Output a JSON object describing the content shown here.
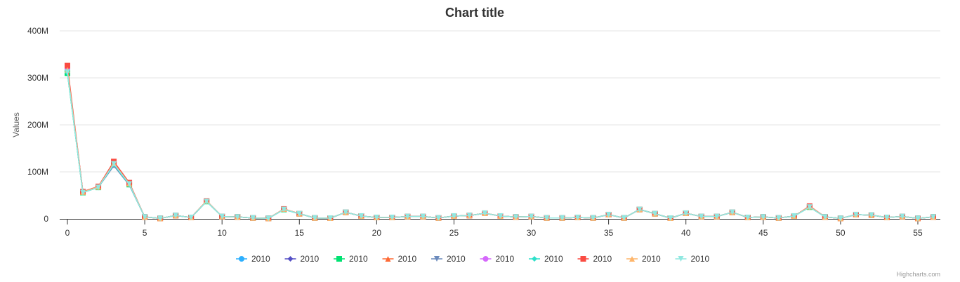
{
  "credits": "Highcharts.com",
  "chart_data": {
    "type": "line",
    "title": "Chart title",
    "ylabel": "Values",
    "xlabel": "",
    "xlim": [
      0,
      56
    ],
    "ylim": [
      0,
      400000000
    ],
    "x_ticks": [
      0,
      5,
      10,
      15,
      20,
      25,
      30,
      35,
      40,
      45,
      50,
      55
    ],
    "y_ticks": [
      0,
      100000000,
      200000000,
      300000000,
      400000000
    ],
    "y_tick_labels": [
      "0",
      "100M",
      "200M",
      "300M",
      "400M"
    ],
    "grid": "horizontal",
    "legend_position": "bottom-center",
    "series": [
      {
        "name": "2010",
        "color": "#2caffe",
        "marker": "circle",
        "values": [
          318000000,
          57000000,
          68000000,
          118000000,
          75000000,
          4000000,
          1000000,
          7000000,
          3000000,
          38000000,
          5000000,
          4000000,
          2000000,
          1000000,
          21000000,
          11000000,
          2000000,
          1500000,
          14000000,
          6000000,
          3000000,
          3000000,
          5000000,
          5000000,
          2000000,
          6000000,
          7000000,
          12000000,
          6000000,
          4000000,
          5000000,
          2000000,
          2000000,
          3000000,
          2000000,
          9000000,
          2000000,
          20000000,
          11000000,
          1500000,
          12000000,
          5000000,
          5000000,
          14000000,
          3000000,
          4000000,
          2000000,
          6000000,
          26000000,
          4000000,
          1000000,
          9000000,
          8000000,
          3000000,
          5000000,
          1000000,
          4000000
        ]
      },
      {
        "name": "2010",
        "color": "#544fc5",
        "marker": "diamond",
        "values": [
          315000000,
          57000000,
          67000000,
          115000000,
          74000000,
          4000000,
          1000000,
          7000000,
          3000000,
          37000000,
          5000000,
          4000000,
          2000000,
          1000000,
          20000000,
          11000000,
          2000000,
          1500000,
          14000000,
          6000000,
          3000000,
          3000000,
          5000000,
          5000000,
          2000000,
          6000000,
          7000000,
          12000000,
          6000000,
          4000000,
          5000000,
          2000000,
          2000000,
          3000000,
          2000000,
          9000000,
          2000000,
          20000000,
          11000000,
          1500000,
          12000000,
          5000000,
          5000000,
          14000000,
          3000000,
          4000000,
          2000000,
          6000000,
          26000000,
          4000000,
          1000000,
          9000000,
          8000000,
          3000000,
          5000000,
          1000000,
          4000000
        ]
      },
      {
        "name": "2010",
        "color": "#00e272",
        "marker": "square",
        "values": [
          310000000,
          56000000,
          67000000,
          117000000,
          73000000,
          4000000,
          1000000,
          7000000,
          3000000,
          37000000,
          5000000,
          4000000,
          2000000,
          1000000,
          20000000,
          11000000,
          2000000,
          1500000,
          14000000,
          6000000,
          3000000,
          3000000,
          5000000,
          5000000,
          2000000,
          6000000,
          7000000,
          12000000,
          6000000,
          4000000,
          5000000,
          2000000,
          2000000,
          3000000,
          2000000,
          9000000,
          2000000,
          20000000,
          11000000,
          1500000,
          12000000,
          5000000,
          5000000,
          14000000,
          3000000,
          4000000,
          2000000,
          6000000,
          25000000,
          4000000,
          1000000,
          9000000,
          8000000,
          3000000,
          5000000,
          1000000,
          4000000
        ]
      },
      {
        "name": "2010",
        "color": "#fe6a35",
        "marker": "triangle",
        "values": [
          322000000,
          57000000,
          68000000,
          120000000,
          76000000,
          4000000,
          1000000,
          7000000,
          3000000,
          38000000,
          5000000,
          4000000,
          2000000,
          1000000,
          21000000,
          11000000,
          2000000,
          1500000,
          14000000,
          6000000,
          3000000,
          3000000,
          5000000,
          5000000,
          2000000,
          6000000,
          7000000,
          12000000,
          6000000,
          4000000,
          5000000,
          2000000,
          2000000,
          3000000,
          2000000,
          9000000,
          2000000,
          20000000,
          11000000,
          1500000,
          12000000,
          5000000,
          5000000,
          14000000,
          3000000,
          4000000,
          2000000,
          6000000,
          27000000,
          4000000,
          1000000,
          9000000,
          8000000,
          3000000,
          5000000,
          1000000,
          4000000
        ]
      },
      {
        "name": "2010",
        "color": "#6b8abc",
        "marker": "triangle-down",
        "values": [
          313000000,
          56000000,
          67000000,
          113000000,
          72000000,
          4000000,
          1000000,
          7000000,
          3000000,
          37000000,
          5000000,
          4000000,
          2000000,
          1000000,
          20000000,
          11000000,
          2000000,
          1500000,
          14000000,
          6000000,
          3000000,
          3000000,
          5000000,
          5000000,
          2000000,
          6000000,
          7000000,
          12000000,
          6000000,
          4000000,
          5000000,
          2000000,
          2000000,
          3000000,
          2000000,
          9000000,
          2000000,
          20000000,
          11000000,
          1500000,
          12000000,
          5000000,
          5000000,
          14000000,
          3000000,
          4000000,
          2000000,
          6000000,
          25000000,
          4000000,
          1000000,
          9000000,
          8000000,
          3000000,
          5000000,
          1000000,
          4000000
        ]
      },
      {
        "name": "2010",
        "color": "#d568fb",
        "marker": "circle",
        "values": [
          320000000,
          57000000,
          68000000,
          119000000,
          75000000,
          4000000,
          1000000,
          7000000,
          3000000,
          38000000,
          5000000,
          4000000,
          2000000,
          1000000,
          21000000,
          11000000,
          2000000,
          1500000,
          14000000,
          6000000,
          3000000,
          3000000,
          5000000,
          5000000,
          2000000,
          6000000,
          7000000,
          12000000,
          6000000,
          4000000,
          5000000,
          2000000,
          2000000,
          3000000,
          2000000,
          9000000,
          2000000,
          20000000,
          11000000,
          1500000,
          12000000,
          5000000,
          5000000,
          14000000,
          3000000,
          4000000,
          2000000,
          6000000,
          26000000,
          4000000,
          1000000,
          9000000,
          8000000,
          3000000,
          5000000,
          1000000,
          4000000
        ]
      },
      {
        "name": "2010",
        "color": "#2ee0ca",
        "marker": "diamond",
        "values": [
          311000000,
          56000000,
          67000000,
          116000000,
          73000000,
          4000000,
          1000000,
          7000000,
          3000000,
          37000000,
          5000000,
          4000000,
          2000000,
          1000000,
          20000000,
          11000000,
          2000000,
          1500000,
          14000000,
          6000000,
          3000000,
          3000000,
          5000000,
          5000000,
          2000000,
          6000000,
          7000000,
          12000000,
          6000000,
          4000000,
          5000000,
          2000000,
          2000000,
          3000000,
          2000000,
          9000000,
          2000000,
          20000000,
          11000000,
          1500000,
          12000000,
          5000000,
          5000000,
          14000000,
          3000000,
          4000000,
          2000000,
          6000000,
          25000000,
          4000000,
          1000000,
          9000000,
          8000000,
          3000000,
          5000000,
          1000000,
          4000000
        ]
      },
      {
        "name": "2010",
        "color": "#fa4b42",
        "marker": "square",
        "values": [
          326000000,
          58000000,
          69000000,
          122000000,
          77000000,
          4000000,
          1000000,
          7000000,
          3000000,
          38000000,
          5000000,
          4000000,
          2000000,
          1000000,
          21000000,
          11000000,
          2000000,
          1500000,
          14000000,
          6000000,
          3000000,
          3000000,
          5000000,
          5000000,
          2000000,
          6000000,
          7000000,
          12000000,
          6000000,
          4000000,
          5000000,
          2000000,
          2000000,
          3000000,
          2000000,
          9000000,
          2000000,
          20000000,
          11000000,
          1500000,
          12000000,
          5000000,
          5000000,
          14000000,
          3000000,
          4000000,
          2000000,
          6000000,
          27000000,
          4000000,
          1000000,
          9000000,
          8000000,
          3000000,
          5000000,
          1000000,
          4000000
        ]
      },
      {
        "name": "2010",
        "color": "#feb56a",
        "marker": "triangle",
        "values": [
          317000000,
          57000000,
          68000000,
          118000000,
          75000000,
          4000000,
          1000000,
          7000000,
          3000000,
          38000000,
          5000000,
          4000000,
          2000000,
          1000000,
          21000000,
          11000000,
          2000000,
          1500000,
          14000000,
          6000000,
          3000000,
          3000000,
          5000000,
          5000000,
          2000000,
          6000000,
          7000000,
          12000000,
          6000000,
          4000000,
          5000000,
          2000000,
          2000000,
          3000000,
          2000000,
          9000000,
          2000000,
          20000000,
          11000000,
          1500000,
          12000000,
          5000000,
          5000000,
          14000000,
          3000000,
          4000000,
          2000000,
          6000000,
          26000000,
          4000000,
          1000000,
          9000000,
          8000000,
          3000000,
          5000000,
          1000000,
          4000000
        ]
      },
      {
        "name": "2010",
        "color": "#91e8e1",
        "marker": "triangle-down",
        "values": [
          312000000,
          56000000,
          67000000,
          117000000,
          74000000,
          4000000,
          1000000,
          7000000,
          3000000,
          37000000,
          5000000,
          4000000,
          2000000,
          1000000,
          20000000,
          11000000,
          2000000,
          1500000,
          14000000,
          6000000,
          3000000,
          3000000,
          5000000,
          5000000,
          2000000,
          6000000,
          7000000,
          12000000,
          6000000,
          4000000,
          5000000,
          2000000,
          2000000,
          3000000,
          2000000,
          9000000,
          2000000,
          20000000,
          11000000,
          1500000,
          12000000,
          5000000,
          5000000,
          14000000,
          3000000,
          4000000,
          2000000,
          6000000,
          25000000,
          4000000,
          1000000,
          9000000,
          8000000,
          3000000,
          5000000,
          1000000,
          4000000
        ]
      }
    ]
  }
}
